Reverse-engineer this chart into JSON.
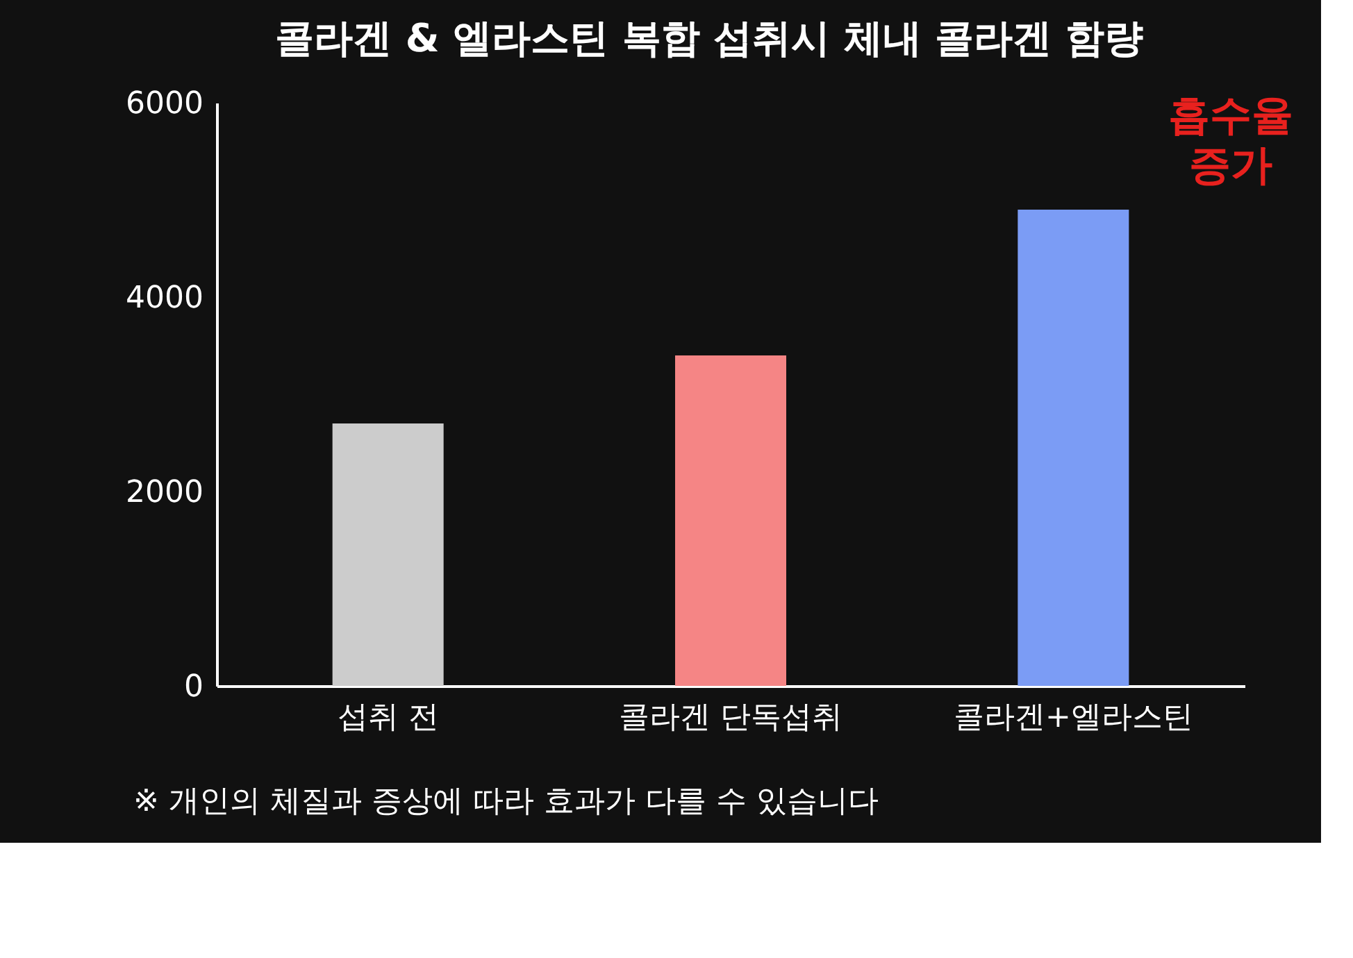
{
  "chart_data": {
    "type": "bar",
    "title": "콜라겐 & 엘라스틴 복합 섭취시 체내 콜라겐 함량",
    "categories": [
      "섭취 전",
      "콜라겐 단독섭취",
      "콜라겐+엘라스틴"
    ],
    "values": [
      2700,
      3400,
      4900
    ],
    "colors": [
      "#cccccc",
      "#f58585",
      "#7b9cf5"
    ],
    "ylim": [
      0,
      6000
    ],
    "yticks": [
      0,
      2000,
      4000,
      6000
    ],
    "annotations": [
      "흡수율 증가",
      "※ 개인의 체질과 증상에 따라 효과가 다를 수 있습니다"
    ]
  }
}
